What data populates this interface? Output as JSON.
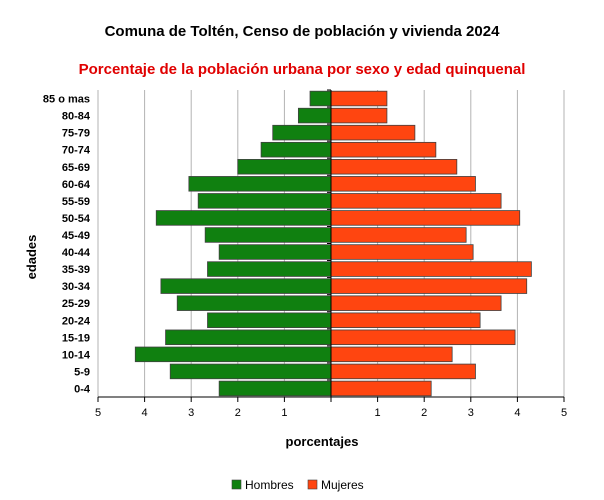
{
  "chart_data": {
    "type": "bar",
    "orientation": "horizontal",
    "layout": "population-pyramid",
    "title": "Comuna de Toltén, Censo de población y vivienda 2024",
    "subtitle": "Porcentaje de la población urbana por sexo y edad quinquenal",
    "xlabel": "porcentajes",
    "ylabel": "edades",
    "xlim": [
      -5,
      5
    ],
    "xticks": [
      -5,
      -4,
      -3,
      -2,
      -1,
      0,
      1,
      2,
      3,
      4,
      5
    ],
    "xtick_labels": [
      "5",
      "4",
      "3",
      "2",
      "1",
      "",
      "1",
      "2",
      "3",
      "4",
      "5"
    ],
    "grid": true,
    "legend_position": "bottom",
    "categories": [
      "0-4",
      "5-9",
      "10-14",
      "15-19",
      "20-24",
      "25-29",
      "30-34",
      "35-39",
      "40-44",
      "45-49",
      "50-54",
      "55-59",
      "60-64",
      "65-69",
      "70-74",
      "75-79",
      "80-84",
      "85 o mas"
    ],
    "series": [
      {
        "name": "Hombres",
        "color": "#108010",
        "values": [
          2.4,
          3.45,
          4.2,
          3.55,
          2.65,
          3.3,
          3.65,
          2.65,
          2.4,
          2.7,
          3.75,
          2.85,
          3.05,
          2.0,
          1.5,
          1.25,
          0.7,
          0.45
        ]
      },
      {
        "name": "Mujeres",
        "color": "#ff4510",
        "values": [
          2.15,
          3.1,
          2.6,
          3.95,
          3.2,
          3.65,
          4.2,
          4.3,
          3.05,
          2.9,
          4.05,
          3.65,
          3.1,
          2.7,
          2.25,
          1.8,
          1.2,
          1.2
        ]
      }
    ]
  },
  "colors": {
    "subtitle": "#e00000",
    "bar_border": "#404040",
    "grid": "#b3b3b3",
    "axis": "#000000"
  }
}
